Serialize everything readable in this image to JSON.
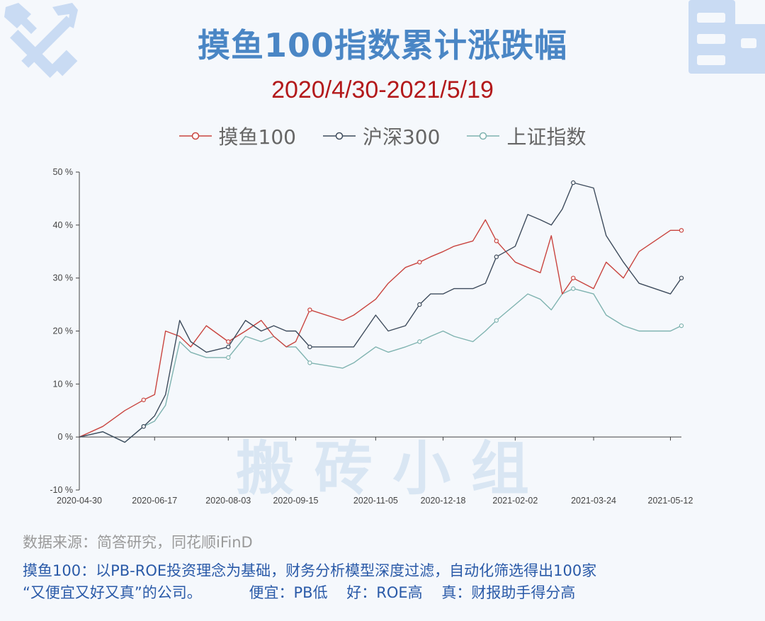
{
  "title": "摸鱼100指数累计涨跌幅",
  "subtitle": "2020/4/30-2021/5/19",
  "watermark": "搬 砖 小 组",
  "source": "数据来源：简答研究，同花顺iFinD",
  "description_line1": "摸鱼100：以PB-ROE投资理念为基础，财务分析模型深度过滤，自动化筛选得出100家",
  "description_line2": "“又便宜又好又真”的公司。          便宜：PB低    好：ROE高    真：财报助手得分高",
  "icons": [
    "wrench-screwdriver-icon",
    "building-icon"
  ],
  "colors": {
    "title": "#4a86c5",
    "subtitle": "#b3191b",
    "moyu": "#c9443f",
    "hs300": "#3d4b5c",
    "sse": "#7fb3b0"
  },
  "chart_data": {
    "type": "line",
    "title": "摸鱼100指数累计涨跌幅",
    "subtitle": "2020/4/30-2021/5/19",
    "xlabel": "",
    "ylabel": "",
    "ylim": [
      -10,
      50
    ],
    "yticks": [
      "50 %",
      "40 %",
      "30 %",
      "20 %",
      "10 %",
      "0 %",
      "-10 %"
    ],
    "xticks": [
      "2020-04-30",
      "2020-06-17",
      "2020-08-03",
      "2020-09-15",
      "2020-11-05",
      "2020-12-18",
      "2021-02-02",
      "2021-03-24",
      "2021-05-12"
    ],
    "legend_position": "top-center",
    "grid": false,
    "x": [
      "2020-04-30",
      "2020-05-15",
      "2020-05-29",
      "2020-06-10",
      "2020-06-17",
      "2020-06-24",
      "2020-07-03",
      "2020-07-10",
      "2020-07-20",
      "2020-08-03",
      "2020-08-14",
      "2020-08-24",
      "2020-09-01",
      "2020-09-09",
      "2020-09-15",
      "2020-09-24",
      "2020-10-15",
      "2020-10-22",
      "2020-11-05",
      "2020-11-13",
      "2020-11-24",
      "2020-12-03",
      "2020-12-10",
      "2020-12-18",
      "2020-12-25",
      "2021-01-06",
      "2021-01-14",
      "2021-01-21",
      "2021-02-02",
      "2021-02-10",
      "2021-02-18",
      "2021-02-25",
      "2021-03-04",
      "2021-03-11",
      "2021-03-24",
      "2021-04-01",
      "2021-04-12",
      "2021-04-22",
      "2021-05-12",
      "2021-05-19"
    ],
    "series": [
      {
        "name": "摸鱼100",
        "values": [
          0,
          2,
          5,
          7,
          8,
          20,
          19,
          17,
          21,
          18,
          20,
          22,
          19,
          17,
          18,
          24,
          22,
          23,
          26,
          29,
          32,
          33,
          34,
          35,
          36,
          37,
          41,
          37,
          33,
          32,
          31,
          38,
          27,
          30,
          28,
          33,
          30,
          35,
          39,
          39
        ]
      },
      {
        "name": "沪深300",
        "values": [
          0,
          1,
          -1,
          2,
          4,
          8,
          22,
          18,
          16,
          17,
          22,
          20,
          21,
          20,
          20,
          17,
          17,
          17,
          23,
          20,
          21,
          25,
          27,
          27,
          28,
          28,
          29,
          34,
          36,
          42,
          41,
          40,
          43,
          48,
          47,
          38,
          33,
          29,
          27,
          30
        ]
      },
      {
        "name": "上证指数",
        "values": [
          0,
          1,
          -1,
          2,
          3,
          6,
          18,
          16,
          15,
          15,
          19,
          18,
          19,
          17,
          17,
          14,
          13,
          14,
          17,
          16,
          17,
          18,
          19,
          20,
          19,
          18,
          20,
          22,
          25,
          27,
          26,
          24,
          27,
          28,
          27,
          23,
          21,
          20,
          20,
          21
        ]
      }
    ]
  }
}
